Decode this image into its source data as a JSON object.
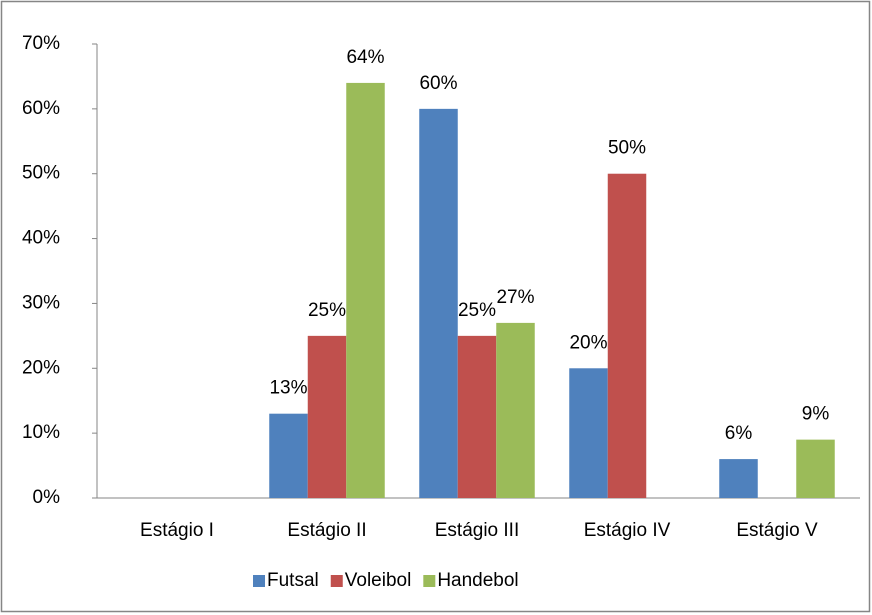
{
  "chart_data": {
    "type": "bar",
    "categories": [
      "Estágio I",
      "Estágio II",
      "Estágio III",
      "Estágio IV",
      "Estágio V"
    ],
    "series": [
      {
        "name": "Futsal",
        "color": "#4f81bd",
        "values": [
          null,
          13,
          60,
          20,
          6
        ],
        "value_labels": [
          null,
          "13%",
          "60%",
          "20%",
          "6%"
        ]
      },
      {
        "name": "Voleibol",
        "color": "#c0504d",
        "values": [
          null,
          25,
          25,
          50,
          null
        ],
        "value_labels": [
          null,
          "25%",
          "25%",
          "50%",
          null
        ]
      },
      {
        "name": "Handebol",
        "color": "#9bbb59",
        "values": [
          null,
          64,
          27,
          null,
          9
        ],
        "value_labels": [
          null,
          "64%",
          "27%",
          null,
          "9%"
        ]
      }
    ],
    "ylim": [
      0,
      70
    ],
    "yticks": [
      {
        "value": 0,
        "label": "0%"
      },
      {
        "value": 10,
        "label": "10%"
      },
      {
        "value": 20,
        "label": "20%"
      },
      {
        "value": 30,
        "label": "30%"
      },
      {
        "value": 40,
        "label": "40%"
      },
      {
        "value": 50,
        "label": "50%"
      },
      {
        "value": 60,
        "label": "60%"
      },
      {
        "value": 70,
        "label": "70%"
      }
    ],
    "grid": false,
    "legend": "bottom"
  }
}
